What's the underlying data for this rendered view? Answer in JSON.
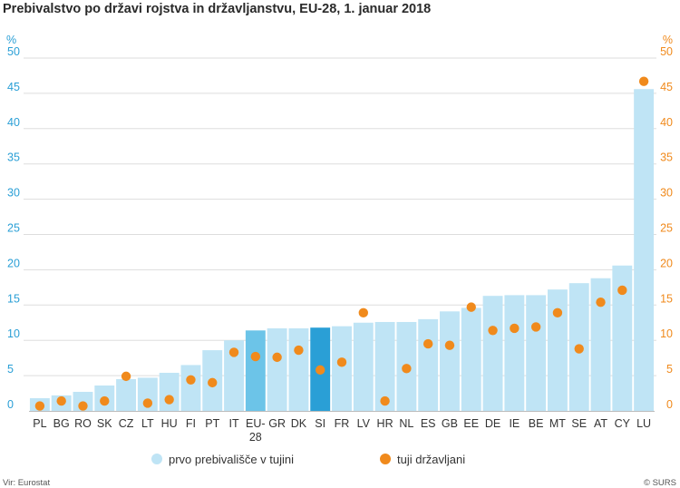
{
  "chart_data": {
    "type": "bar",
    "title": "Prebivalstvo po državi rojstva in državljanstvu, EU-28, 1. januar 2018",
    "ylabel_left": "%",
    "ylabel_right": "%",
    "ylim": [
      0,
      50
    ],
    "yticks": [
      0,
      5,
      10,
      15,
      20,
      25,
      30,
      35,
      40,
      45,
      50
    ],
    "grid": true,
    "legend_position": "bottom",
    "categories": [
      "PL",
      "BG",
      "RO",
      "SK",
      "CZ",
      "LT",
      "HU",
      "FI",
      "PT",
      "IT",
      "EU-28",
      "GR",
      "DK",
      "SI",
      "FR",
      "LV",
      "HR",
      "NL",
      "ES",
      "GB",
      "EE",
      "DE",
      "IE",
      "BE",
      "MT",
      "SE",
      "AT",
      "CY",
      "LU"
    ],
    "category_labels": [
      [
        "PL"
      ],
      [
        "BG"
      ],
      [
        "RO"
      ],
      [
        "SK"
      ],
      [
        "CZ"
      ],
      [
        "LT"
      ],
      [
        "HU"
      ],
      [
        "FI"
      ],
      [
        "PT"
      ],
      [
        "IT"
      ],
      [
        "EU-",
        "28"
      ],
      [
        "GR"
      ],
      [
        "DK"
      ],
      [
        "SI"
      ],
      [
        "FR"
      ],
      [
        "LV"
      ],
      [
        "HR"
      ],
      [
        "NL"
      ],
      [
        "ES"
      ],
      [
        "GB"
      ],
      [
        "EE"
      ],
      [
        "DE"
      ],
      [
        "IE"
      ],
      [
        "BE"
      ],
      [
        "MT"
      ],
      [
        "SE"
      ],
      [
        "AT"
      ],
      [
        "CY"
      ],
      [
        "LU"
      ]
    ],
    "series": [
      {
        "name": "prvo prebivališče v tujini",
        "type": "bar",
        "values": [
          1.8,
          2.2,
          2.7,
          3.6,
          4.5,
          4.7,
          5.4,
          6.5,
          8.6,
          10.0,
          11.4,
          11.7,
          11.7,
          11.8,
          12.0,
          12.5,
          12.6,
          12.6,
          13.0,
          14.1,
          14.6,
          16.3,
          16.4,
          16.4,
          17.2,
          18.1,
          18.8,
          20.6,
          45.6
        ],
        "highlight": {
          "EU-28": "#6cc4e8",
          "SI": "#2a9fd6"
        }
      },
      {
        "name": "tuji državljani",
        "type": "scatter",
        "values": [
          0.7,
          1.4,
          0.7,
          1.4,
          4.9,
          1.1,
          1.6,
          4.4,
          4.0,
          8.3,
          7.7,
          7.6,
          8.6,
          5.8,
          6.9,
          13.9,
          1.4,
          6.0,
          9.5,
          9.3,
          14.7,
          11.4,
          11.7,
          11.9,
          13.9,
          8.8,
          15.4,
          17.1,
          46.7
        ]
      }
    ]
  },
  "colors": {
    "bar": "#bfe4f5",
    "bar_eu28": "#6cc4e8",
    "bar_si": "#2a9fd6",
    "dot": "#f08a1c",
    "axis_left_text": "#2a9fd6",
    "axis_right_text": "#f08a1c",
    "grid": "#dddddd"
  },
  "legend": [
    {
      "label": "prvo prebivališče v tujini",
      "marker": "circle",
      "color": "#bfe4f5"
    },
    {
      "label": "tuji državljani",
      "marker": "circle",
      "color": "#f08a1c"
    }
  ],
  "footer": {
    "source": "Vir: Eurostat",
    "copyright": "© SURS"
  }
}
